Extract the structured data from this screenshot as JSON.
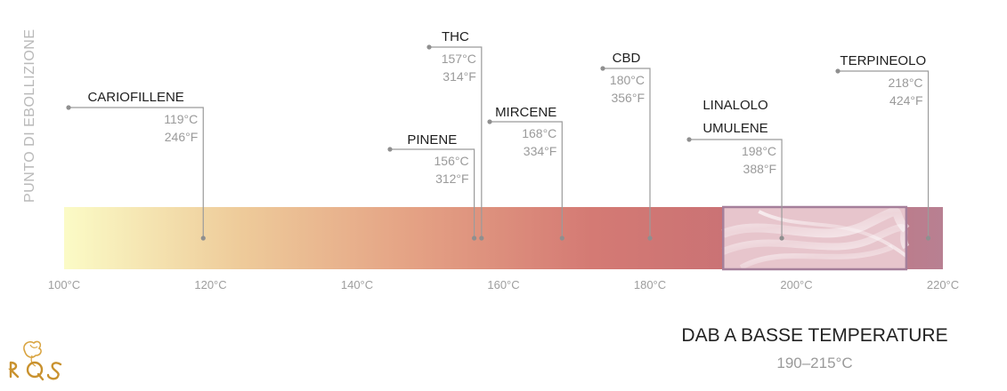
{
  "chart_data": {
    "type": "range-strip",
    "ylabel": "PUNTO DI EBOLLIZIONE",
    "xlim": [
      100,
      220
    ],
    "ticks": [
      {
        "value": 100,
        "label": "100°C"
      },
      {
        "value": 120,
        "label": "120°C"
      },
      {
        "value": 140,
        "label": "140°C"
      },
      {
        "value": 160,
        "label": "160°C"
      },
      {
        "value": 180,
        "label": "180°C"
      },
      {
        "value": 200,
        "label": "200°C"
      },
      {
        "value": 220,
        "label": "220°C"
      }
    ],
    "gradient_colors": [
      "#fbfbc6",
      "#eecb9a",
      "#e4a184",
      "#d47a74",
      "#c77075",
      "#b88092"
    ],
    "compounds": [
      {
        "name": "CARIOFILLENE",
        "celsius": "119°C",
        "fahrenheit": "246°F",
        "value": 119
      },
      {
        "name": "PINENE",
        "celsius": "156°C",
        "fahrenheit": "312°F",
        "value": 156
      },
      {
        "name": "THC",
        "celsius": "157°C",
        "fahrenheit": "314°F",
        "value": 157
      },
      {
        "name": "MIRCENE",
        "celsius": "168°C",
        "fahrenheit": "334°F",
        "value": 168
      },
      {
        "name": "CBD",
        "celsius": "180°C",
        "fahrenheit": "356°F",
        "value": 180
      },
      {
        "name": "LINALOLO",
        "name2": "UMULENE",
        "celsius": "198°C",
        "fahrenheit": "388°F",
        "value": 198
      },
      {
        "name": "TERPINEOLO",
        "celsius": "218°C",
        "fahrenheit": "424°F",
        "value": 218
      }
    ],
    "highlight": {
      "title": "DAB A BASSE TEMPERATURE",
      "range_label": "190–215°C",
      "range": [
        190,
        215
      ]
    }
  }
}
